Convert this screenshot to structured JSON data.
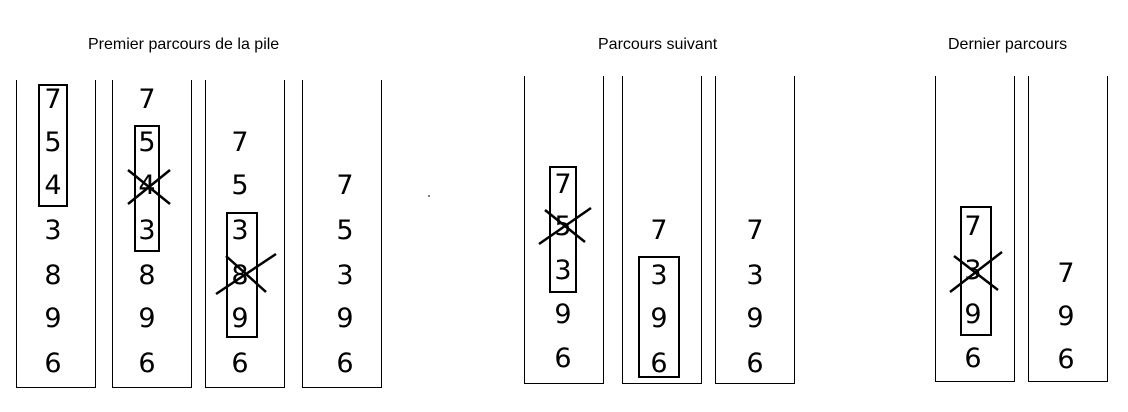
{
  "groups": [
    {
      "title": "Premier parcours de la pile",
      "stacks": [
        {
          "values": [
            "7",
            "5",
            "4",
            "3",
            "8",
            "9",
            "6"
          ]
        },
        {
          "values": [
            "7",
            "5",
            "4",
            "3",
            "8",
            "9",
            "6"
          ]
        },
        {
          "values": [
            "7",
            "5",
            "3",
            "8",
            "9",
            "6"
          ]
        },
        {
          "values": [
            "7",
            "5",
            "3",
            "9",
            "6"
          ]
        }
      ]
    },
    {
      "title": "Parcours suivant",
      "stacks": [
        {
          "values": [
            "7",
            "5",
            "3",
            "9",
            "6"
          ]
        },
        {
          "values": [
            "7",
            "3",
            "9",
            "6"
          ]
        },
        {
          "values": [
            "7",
            "3",
            "9",
            "6"
          ]
        }
      ]
    },
    {
      "title": "Dernier parcours",
      "stacks": [
        {
          "values": [
            "7",
            "3",
            "9",
            "6"
          ]
        },
        {
          "values": [
            "7",
            "9",
            "6"
          ]
        }
      ]
    }
  ]
}
